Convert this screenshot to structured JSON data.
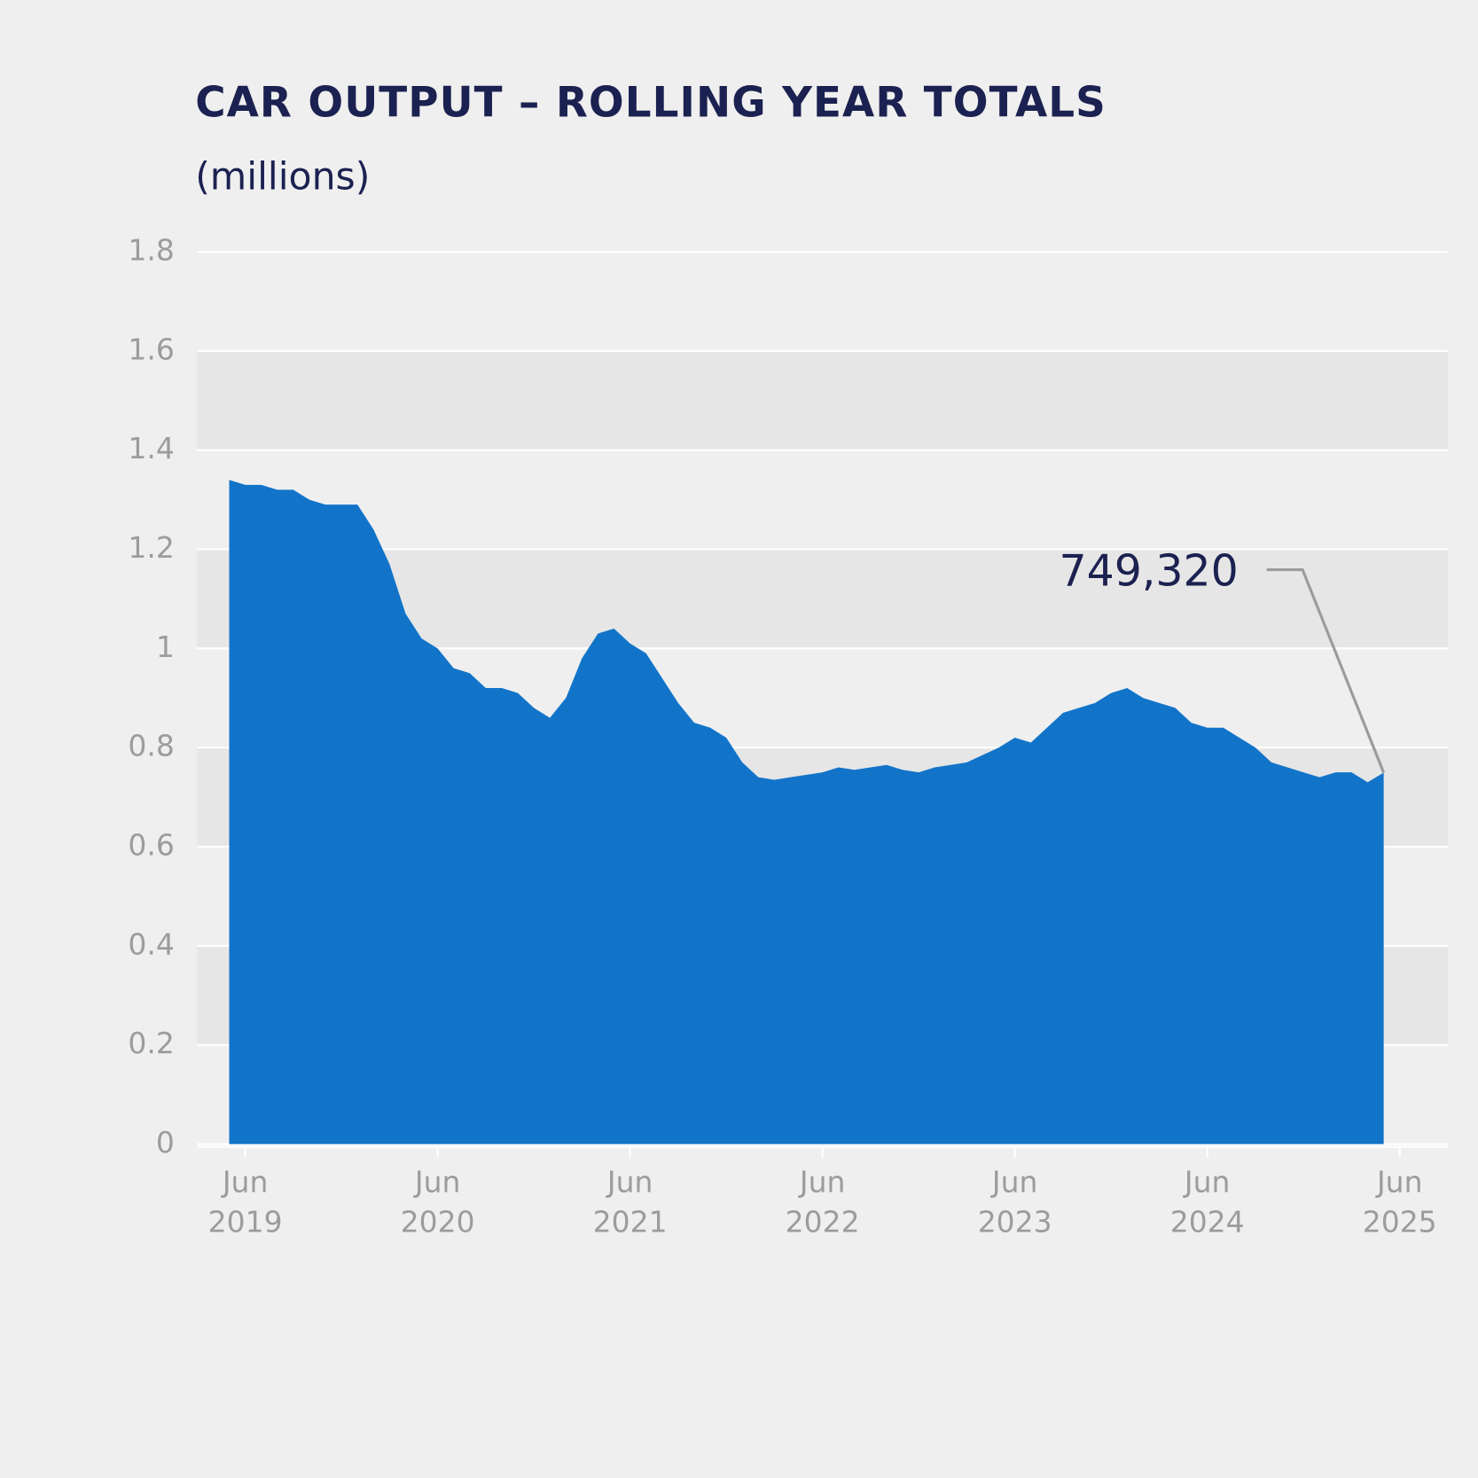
{
  "chart_data": {
    "type": "area",
    "title": "CAR OUTPUT – ROLLING YEAR TOTALS",
    "subtitle": "(millions)",
    "x": [
      "2019-05",
      "2019-06",
      "2019-07",
      "2019-08",
      "2019-09",
      "2019-10",
      "2019-11",
      "2019-12",
      "2020-01",
      "2020-02",
      "2020-03",
      "2020-04",
      "2020-05",
      "2020-06",
      "2020-07",
      "2020-08",
      "2020-09",
      "2020-10",
      "2020-11",
      "2020-12",
      "2021-01",
      "2021-02",
      "2021-03",
      "2021-04",
      "2021-05",
      "2021-06",
      "2021-07",
      "2021-08",
      "2021-09",
      "2021-10",
      "2021-11",
      "2021-12",
      "2022-01",
      "2022-02",
      "2022-03",
      "2022-04",
      "2022-05",
      "2022-06",
      "2022-07",
      "2022-08",
      "2022-09",
      "2022-10",
      "2022-11",
      "2022-12",
      "2023-01",
      "2023-02",
      "2023-03",
      "2023-04",
      "2023-05",
      "2023-06",
      "2023-07",
      "2023-08",
      "2023-09",
      "2023-10",
      "2023-11",
      "2023-12",
      "2024-01",
      "2024-02",
      "2024-03",
      "2024-04",
      "2024-05",
      "2024-06",
      "2024-07",
      "2024-08",
      "2024-09",
      "2024-10",
      "2024-11",
      "2024-12",
      "2025-01",
      "2025-02",
      "2025-03",
      "2025-04",
      "2025-05"
    ],
    "series": [
      {
        "name": "Car output",
        "color": "#1274c9",
        "values": [
          1.34,
          1.33,
          1.33,
          1.32,
          1.32,
          1.3,
          1.29,
          1.29,
          1.29,
          1.24,
          1.17,
          1.07,
          1.02,
          1.0,
          0.96,
          0.95,
          0.92,
          0.92,
          0.91,
          0.88,
          0.86,
          0.9,
          0.98,
          1.03,
          1.04,
          1.01,
          0.99,
          0.94,
          0.89,
          0.85,
          0.84,
          0.82,
          0.77,
          0.74,
          0.735,
          0.74,
          0.745,
          0.75,
          0.76,
          0.755,
          0.76,
          0.765,
          0.755,
          0.75,
          0.76,
          0.765,
          0.77,
          0.785,
          0.8,
          0.82,
          0.81,
          0.84,
          0.87,
          0.88,
          0.89,
          0.91,
          0.92,
          0.9,
          0.89,
          0.88,
          0.85,
          0.84,
          0.84,
          0.82,
          0.8,
          0.77,
          0.76,
          0.75,
          0.74,
          0.75,
          0.75,
          0.73,
          0.74932
        ]
      }
    ],
    "annotation": {
      "text": "749,320"
    },
    "xlim": [
      "2019-03",
      "2025-09"
    ],
    "xticks": [
      {
        "value": "2019-06",
        "label": "Jun 2019"
      },
      {
        "value": "2020-06",
        "label": "Jun 2020"
      },
      {
        "value": "2021-06",
        "label": "Jun 2021"
      },
      {
        "value": "2022-06",
        "label": "Jun 2022"
      },
      {
        "value": "2023-06",
        "label": "Jun 2023"
      },
      {
        "value": "2024-06",
        "label": "Jun 2024"
      },
      {
        "value": "2025-06",
        "label": "Jun 2025"
      }
    ],
    "ylim": [
      0,
      1.8
    ],
    "yticks": [
      0,
      0.2,
      0.4,
      0.6,
      0.8,
      1,
      1.2,
      1.4,
      1.6,
      1.8
    ],
    "grid": true
  }
}
